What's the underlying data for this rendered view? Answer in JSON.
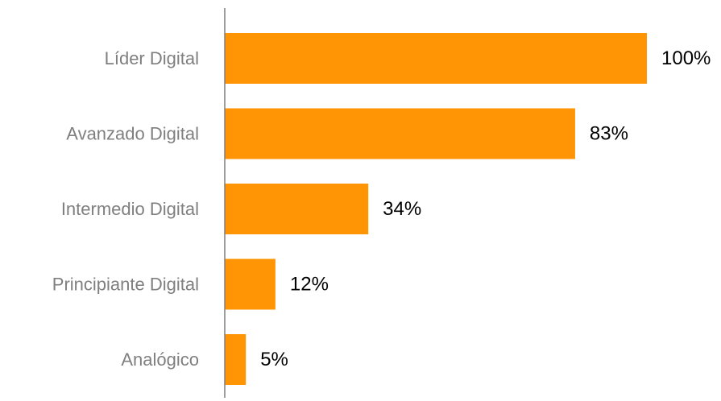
{
  "chart_data": {
    "type": "bar",
    "orientation": "horizontal",
    "categories": [
      "Líder Digital",
      "Avanzado Digital",
      "Intermedio Digital",
      "Principiante Digital",
      "Analógico"
    ],
    "values": [
      100,
      83,
      34,
      12,
      5
    ],
    "value_labels": [
      "100%",
      "83%",
      "34%",
      "12%",
      "5%"
    ],
    "xlim": [
      0,
      100
    ],
    "title": "",
    "xlabel": "",
    "ylabel": "",
    "grid": false,
    "legend": "none",
    "colors": {
      "bar": "#ff9505",
      "axis": "#7f7f7f",
      "category_text": "#7f7f7f",
      "value_text": "#000000"
    }
  }
}
